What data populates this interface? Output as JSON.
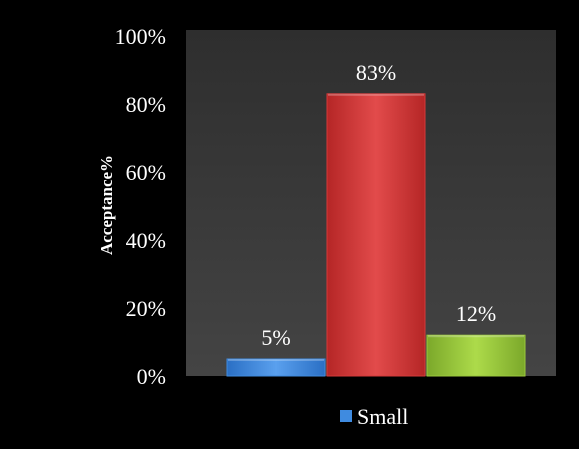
{
  "chart_data": {
    "type": "bar",
    "categories": [
      "",
      "",
      ""
    ],
    "values": [
      5,
      83,
      12
    ],
    "data_labels": [
      "5%",
      "83%",
      "12%"
    ],
    "series": [
      {
        "name": "Small",
        "values": [
          5,
          83,
          12
        ]
      }
    ],
    "title": "",
    "xlabel": "",
    "ylabel": "Acceptance%",
    "ylim": [
      0,
      100
    ],
    "yticks": [
      "0%",
      "20%",
      "40%",
      "60%",
      "80%",
      "100%"
    ],
    "grid": false,
    "legend": {
      "position": "bottom",
      "entries": [
        "Small"
      ]
    },
    "colors": {
      "outer_background": "#000000",
      "plot_background": "#3a3a3a",
      "bars": [
        "#3f8be0",
        "#d63a3a",
        "#9bc93c"
      ],
      "legend_marker": "#3f8be0",
      "text": "#ffffff"
    }
  }
}
